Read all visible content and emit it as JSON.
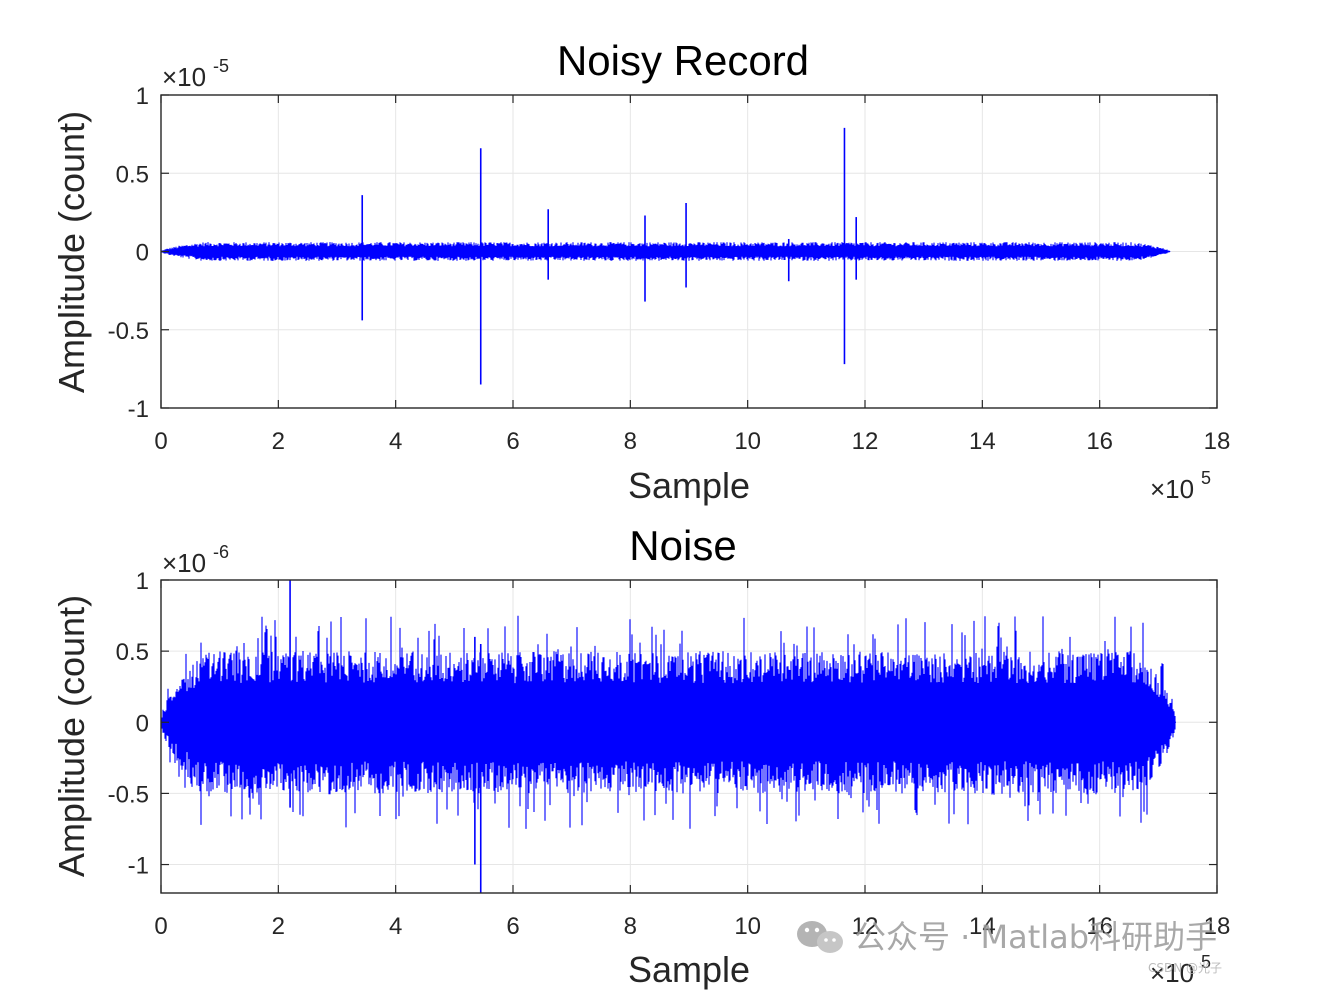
{
  "chart_data": [
    {
      "type": "line",
      "title": "Noisy Record",
      "xlabel": "Sample",
      "ylabel": "Amplitude (count)",
      "x_exponent": "×10^5",
      "y_exponent": "×10^-5",
      "xlim": [
        0,
        18
      ],
      "ylim": [
        -1,
        1
      ],
      "xticks": [
        "0",
        "2",
        "4",
        "6",
        "8",
        "10",
        "12",
        "14",
        "16",
        "18"
      ],
      "yticks": [
        "1",
        "0.5",
        "0",
        "-0.5",
        "-1"
      ],
      "grid": true,
      "signal_extent": [
        0,
        17.2
      ],
      "noise_envelope": 0.06,
      "color": "#0000ff",
      "spikes": [
        {
          "x": 3.43,
          "max": 0.36,
          "min": -0.44
        },
        {
          "x": 5.45,
          "max": 0.66,
          "min": -0.85
        },
        {
          "x": 6.6,
          "max": 0.27,
          "min": -0.18
        },
        {
          "x": 8.25,
          "max": 0.23,
          "min": -0.32
        },
        {
          "x": 8.95,
          "max": 0.31,
          "min": -0.23
        },
        {
          "x": 10.7,
          "max": 0.08,
          "min": -0.19
        },
        {
          "x": 11.65,
          "max": 0.79,
          "min": -0.72
        },
        {
          "x": 11.85,
          "max": 0.22,
          "min": -0.18
        }
      ]
    },
    {
      "type": "line",
      "title": "Noise",
      "xlabel": "Sample",
      "ylabel": "Amplitude (count)",
      "x_exponent": "×10^5",
      "y_exponent": "×10^-6",
      "xlim": [
        0,
        18
      ],
      "ylim": [
        -1.2,
        1
      ],
      "xticks": [
        "0",
        "2",
        "4",
        "6",
        "8",
        "10",
        "12",
        "14",
        "16",
        "18"
      ],
      "yticks": [
        "1",
        "0.5",
        "0",
        "-0.5",
        "-1"
      ],
      "grid": true,
      "signal_extent": [
        0,
        17.3
      ],
      "noise_envelope": 0.5,
      "color": "#0000ff",
      "peaks": [
        {
          "x": 2.2,
          "max": 1.0,
          "min": -0.6
        },
        {
          "x": 5.45,
          "max": 0.55,
          "min": -1.2
        },
        {
          "x": 5.35,
          "max": 0.6,
          "min": -1.0
        }
      ]
    }
  ],
  "watermark": {
    "text": "公众号 · Matlab科研助手",
    "small": "CSDN @光子"
  }
}
